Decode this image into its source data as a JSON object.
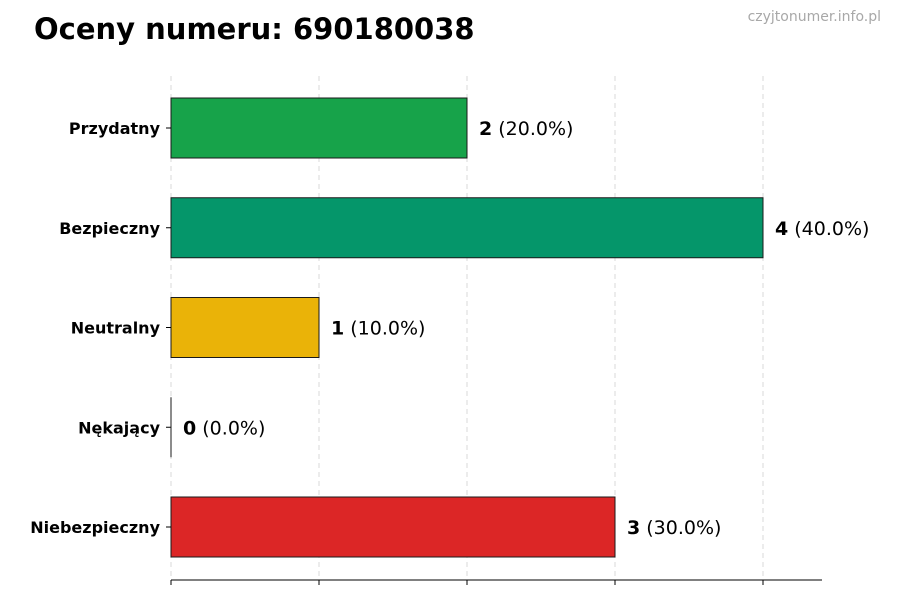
{
  "header": {
    "title": "Oceny numeru: 690180038",
    "watermark": "czyjtonumer.info.pl"
  },
  "chart_data": {
    "type": "bar",
    "orientation": "horizontal",
    "title": "Oceny numeru: 690180038",
    "xlabel": "",
    "ylabel": "",
    "categories": [
      "Przydatny",
      "Bezpieczny",
      "Neutralny",
      "Nękający",
      "Niebezpieczny"
    ],
    "values": [
      2,
      4,
      1,
      0,
      3
    ],
    "percent_labels": [
      "(20.0%)",
      "(40.0%)",
      "(10.0%)",
      "(0.0%)",
      "(30.0%)"
    ],
    "colors": [
      "#17a34a",
      "#05966a",
      "#eab308",
      "#f97316",
      "#dc2626"
    ],
    "xlim": [
      0,
      4.4
    ],
    "grid": true,
    "legend": "none"
  }
}
